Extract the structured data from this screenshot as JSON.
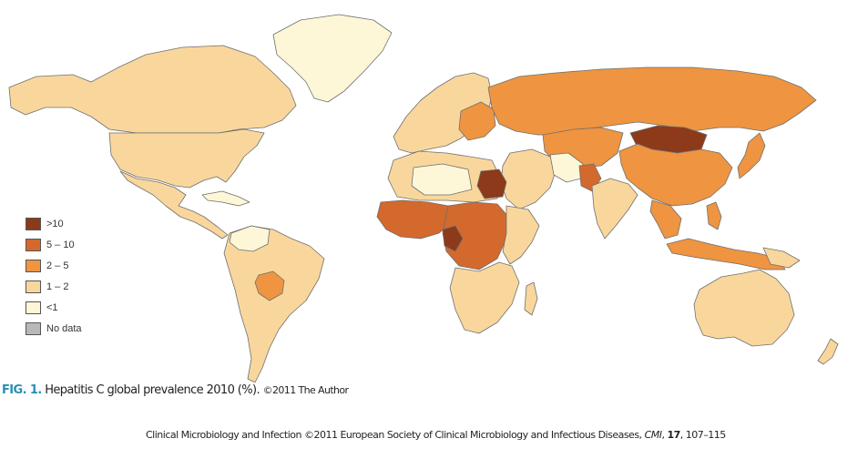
{
  "colors": {
    "gt10": "#8c3a1a",
    "c5_10": "#d4692d",
    "c2_5": "#ef9440",
    "c1_2": "#f9d79c",
    "lt1": "#fdf7d8",
    "no_data": "#b8b8b8"
  },
  "legend": {
    "items": [
      {
        "label": ">10",
        "color": "#8c3a1a"
      },
      {
        "label": "5 – 10",
        "color": "#d4692d"
      },
      {
        "label": "2 – 5",
        "color": "#ef9440"
      },
      {
        "label": "1 – 2",
        "color": "#f9d79c"
      },
      {
        "label": "<1",
        "color": "#fdf7d8"
      },
      {
        "label": "No data",
        "color": "#b8b8b8"
      }
    ]
  },
  "caption": {
    "fig_label": "FIG. 1.",
    "text": "Hepatitis C global prevalence 2010 (%).",
    "copyright": "©2011 The Author"
  },
  "footer": {
    "journal": "Clinical Microbiology and Infection ©2011 European Society of Clinical Microbiology and Infectious Diseases, ",
    "abbr": "CMI",
    "sep": ", ",
    "volume": "17",
    "pages": ", 107–115"
  }
}
